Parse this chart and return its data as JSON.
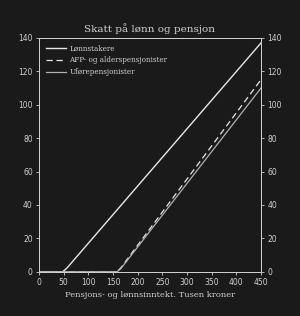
{
  "title": "Skatt på lønn og pensjon",
  "xlabel": "Pensjons- og lønnsinntekt. Tusen kroner",
  "xlim": [
    0,
    450
  ],
  "ylim": [
    0,
    140
  ],
  "xticks": [
    0,
    50,
    100,
    150,
    200,
    250,
    300,
    350,
    400,
    450
  ],
  "yticks": [
    0,
    20,
    40,
    60,
    80,
    100,
    120,
    140
  ],
  "background_color": "#1a1a1a",
  "plot_bg_color": "#1a1a1a",
  "text_color": "#d0d0d0",
  "spine_color": "#d0d0d0",
  "line_color_wage": "#e8e8e8",
  "line_color_afp": "#e8e8e8",
  "line_color_ufor": "#b0b0b0",
  "legend_labels": [
    "Lønnstakere",
    "AFP- og alderspensjonister",
    "Uførepensjonister"
  ],
  "wage_breakpoints": [
    0,
    48,
    56,
    450
  ],
  "wage_taxes": [
    0,
    0,
    2,
    137
  ],
  "afp_breakpoints": [
    0,
    158,
    165,
    450
  ],
  "afp_taxes": [
    0,
    0,
    2,
    115
  ],
  "ufor_breakpoints": [
    0,
    158,
    165,
    450
  ],
  "ufor_taxes": [
    0,
    0,
    1.5,
    110
  ]
}
